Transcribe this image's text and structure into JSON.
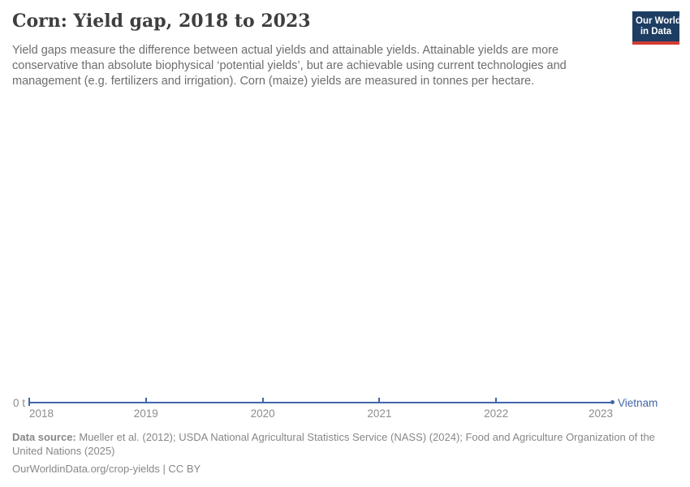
{
  "header": {
    "title": "Corn: Yield gap, 2018 to 2023",
    "subtitle": "Yield gaps measure the difference between actual yields and attainable yields. Attainable yields are more conservative than absolute biophysical ‘potential yields’, but are achievable using current technologies and management (e.g. fertilizers and irrigation). Corn (maize) yields are measured in tonnes per hectare.",
    "logo": {
      "line1": "Our World",
      "line2": "in Data",
      "bg_color": "#1d3d63",
      "bar_color": "#d13c32"
    }
  },
  "chart_data": {
    "type": "line",
    "title": "Corn: Yield gap, 2018 to 2023",
    "x": [
      2018,
      2019,
      2020,
      2021,
      2022,
      2023
    ],
    "series": [
      {
        "name": "Vietnam",
        "values": [
          0,
          0,
          0,
          0,
          0,
          0
        ],
        "color": "#4266ab"
      }
    ],
    "unit": "tonnes per hectare",
    "y_zero_label": "0 t",
    "ylim": [
      0,
      null
    ],
    "grid": false,
    "legend_position": "end-of-line"
  },
  "footer": {
    "data_source_label": "Data source:",
    "data_source_text": " Mueller et al. (2012); USDA National Agricultural Statistics Service (NASS) (2024); Food and Agriculture Organization of the United Nations (2025)",
    "url_line": "OurWorldinData.org/crop-yields | CC BY"
  }
}
